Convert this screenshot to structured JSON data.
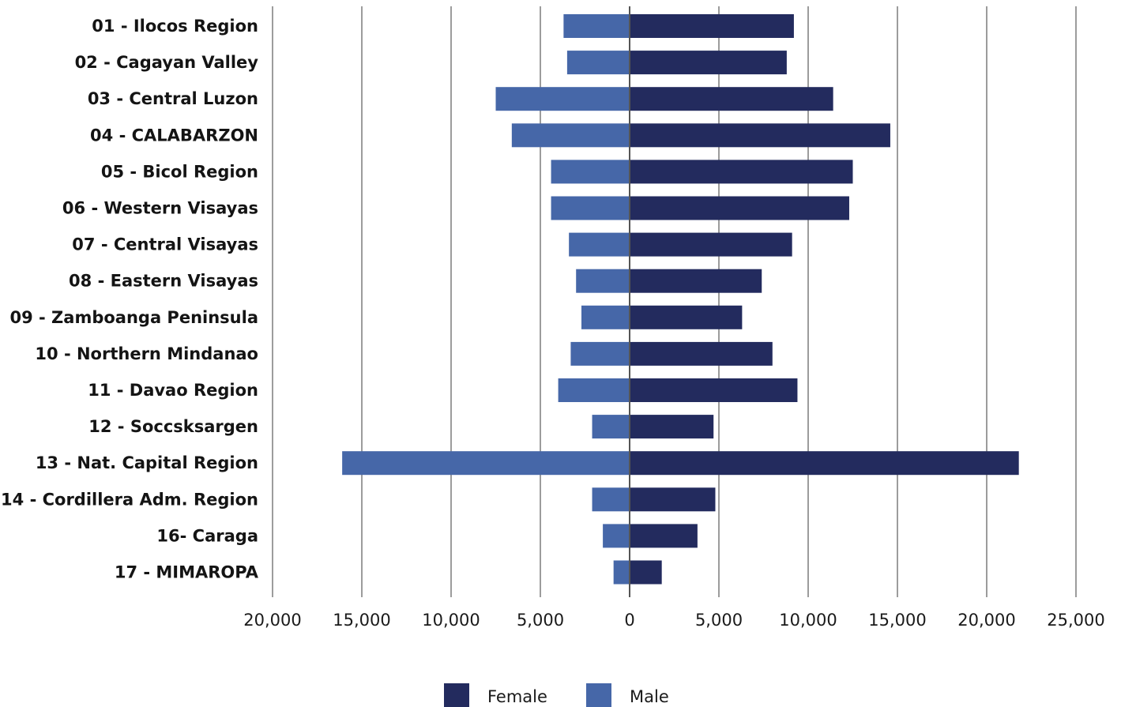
{
  "chart_data": {
    "type": "bar",
    "orientation": "horizontal-diverging",
    "title": "",
    "xlabel": "",
    "ylabel": "",
    "xlim": [
      -20000,
      25000
    ],
    "x_ticks": [
      -20000,
      -15000,
      -10000,
      -5000,
      0,
      5000,
      10000,
      15000,
      20000,
      25000
    ],
    "x_tick_labels": [
      "20,000",
      "15,000",
      "10,000",
      "5,000",
      "0",
      "5,000",
      "10,000",
      "15,000",
      "20,000",
      "25,000"
    ],
    "grid": "vertical",
    "legend_position": "bottom-center",
    "categories": [
      "01 - Ilocos Region",
      "02 - Cagayan Valley",
      "03 - Central Luzon",
      "04 - CALABARZON",
      "05 - Bicol Region",
      "06 - Western Visayas",
      "07 - Central Visayas",
      "08 - Eastern Visayas",
      "09 - Zamboanga Peninsula",
      "10 - Northern Mindanao",
      "11 - Davao Region",
      "12 - Soccsksargen",
      "13 - Nat. Capital Region",
      "14 - Cordillera Adm. Region",
      "16- Caraga",
      "17 - MIMAROPA"
    ],
    "series": [
      {
        "name": "Female",
        "color": "#232b5e",
        "side": "right",
        "values": [
          9200,
          8800,
          11400,
          14600,
          12500,
          12300,
          9100,
          7400,
          6300,
          8000,
          9400,
          4700,
          21800,
          4800,
          3800,
          1800
        ]
      },
      {
        "name": "Male",
        "color": "#4667a8",
        "side": "left",
        "values": [
          3700,
          3500,
          7500,
          6600,
          4400,
          4400,
          3400,
          3000,
          2700,
          3300,
          4000,
          2100,
          16100,
          2100,
          1500,
          900
        ]
      }
    ]
  }
}
